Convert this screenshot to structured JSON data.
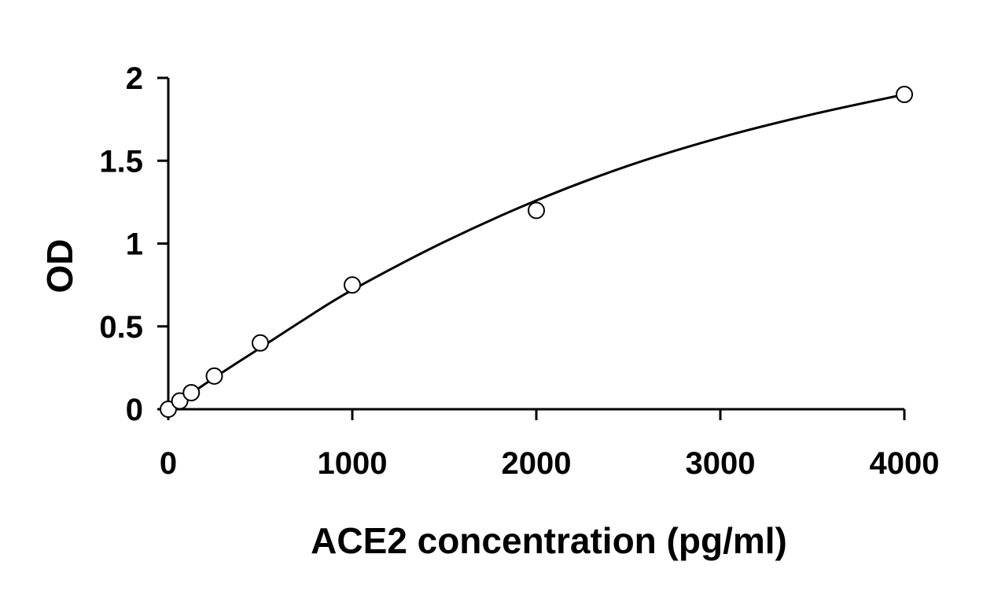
{
  "chart_data": {
    "type": "scatter",
    "title": "",
    "xlabel": "ACE2 concentration (pg/ml)",
    "ylabel": "OD",
    "xlim": [
      0,
      4000
    ],
    "ylim": [
      0,
      2
    ],
    "x_ticks": [
      0,
      1000,
      2000,
      3000,
      4000
    ],
    "y_ticks": [
      0,
      0.5,
      1,
      1.5,
      2
    ],
    "x_tick_labels": [
      "0",
      "1000",
      "2000",
      "3000",
      "4000"
    ],
    "y_tick_labels": [
      "0",
      "0.5",
      "1",
      "1.5",
      "2"
    ],
    "grid": false,
    "legend": "none",
    "series": [
      {
        "marker": "open-circle",
        "x": [
          0,
          62.5,
          125,
          250,
          500,
          1000,
          2000,
          4000
        ],
        "y": [
          0.0,
          0.05,
          0.1,
          0.2,
          0.4,
          0.75,
          1.2,
          1.9
        ]
      }
    ],
    "fit_curve": {
      "style": "solid",
      "color": "#000000",
      "x": [
        0,
        250,
        500,
        750,
        1000,
        1500,
        2000,
        2500,
        3000,
        3500,
        4000
      ],
      "y": [
        0.0,
        0.19,
        0.37,
        0.55,
        0.72,
        1.01,
        1.26,
        1.47,
        1.64,
        1.78,
        1.9
      ]
    }
  }
}
